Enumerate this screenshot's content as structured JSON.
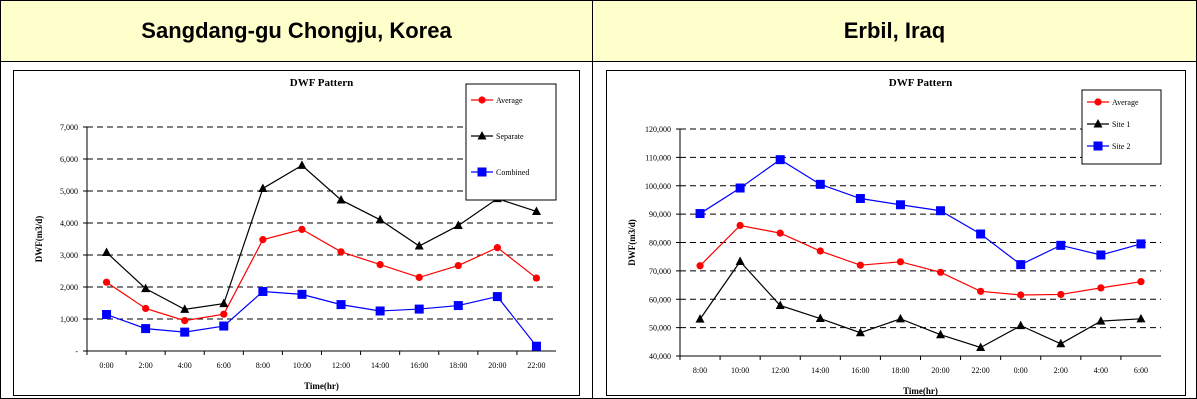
{
  "headers": [
    "Sangdang-gu Chongju, Korea",
    "Erbil, Iraq"
  ],
  "chart_data": [
    {
      "type": "line",
      "title": "DWF Pattern",
      "xlabel": "Time(hr)",
      "ylabel": "DWF(m3/d)",
      "categories": [
        "0:00",
        "2:00",
        "4:00",
        "6:00",
        "8:00",
        "10:00",
        "12:00",
        "14:00",
        "16:00",
        "18:00",
        "20:00",
        "22:00"
      ],
      "ylim": [
        0,
        7000
      ],
      "yticks": [
        "-",
        "1,000",
        "2,000",
        "3,000",
        "4,000",
        "5,000",
        "6,000",
        "7,000"
      ],
      "grid": "horizontal dashed",
      "legend_position": "top-right",
      "series": [
        {
          "name": "Average",
          "color": "#ff0000",
          "marker": "circle",
          "values": [
            2150,
            1330,
            950,
            1150,
            3480,
            3800,
            3100,
            2700,
            2300,
            2670,
            3230,
            2280
          ]
        },
        {
          "name": "Separate",
          "color": "#000000",
          "marker": "triangle",
          "values": [
            3080,
            1950,
            1300,
            1480,
            5080,
            5800,
            4720,
            4100,
            3280,
            3920,
            4760,
            4360
          ]
        },
        {
          "name": "Combined",
          "color": "#0000ff",
          "marker": "square",
          "values": [
            1140,
            700,
            590,
            780,
            1860,
            1770,
            1450,
            1250,
            1310,
            1420,
            1700,
            150
          ]
        }
      ]
    },
    {
      "type": "line",
      "title": "DWF Pattern",
      "xlabel": "Time(hr)",
      "ylabel": "DWF(m3/d)",
      "categories": [
        "8:00",
        "10:00",
        "12:00",
        "14:00",
        "16:00",
        "18:00",
        "20:00",
        "22:00",
        "0:00",
        "2:00",
        "4:00",
        "6:00"
      ],
      "ylim": [
        40000,
        120000
      ],
      "yticks": [
        "40,000",
        "50,000",
        "60,000",
        "70,000",
        "80,000",
        "90,000",
        "100,000",
        "110,000",
        "120,000"
      ],
      "grid": "horizontal dashed",
      "legend_position": "top-right",
      "series": [
        {
          "name": "Average",
          "color": "#ff0000",
          "marker": "circle",
          "values": [
            71800,
            86000,
            83300,
            77000,
            72000,
            73200,
            69500,
            62800,
            61500,
            61700,
            64000,
            66200
          ]
        },
        {
          "name": "Site 1",
          "color": "#000000",
          "marker": "triangle",
          "values": [
            53000,
            73300,
            57800,
            53200,
            48200,
            53100,
            47500,
            43000,
            50700,
            44300,
            52300,
            53100
          ]
        },
        {
          "name": "Site 2",
          "color": "#0000ff",
          "marker": "square",
          "values": [
            90200,
            99200,
            109200,
            100500,
            95500,
            93300,
            91200,
            83000,
            72200,
            79000,
            75600,
            79500
          ]
        }
      ]
    }
  ]
}
